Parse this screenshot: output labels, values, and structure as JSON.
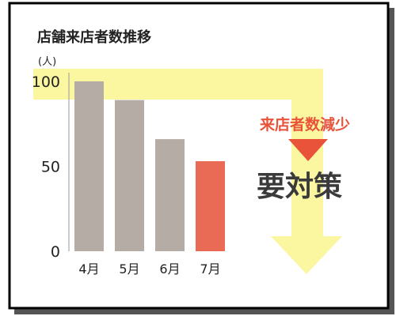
{
  "chart_data": {
    "type": "bar",
    "title": "店舗来店者数推移",
    "ylabel": "(人)",
    "xlabel": "",
    "categories": [
      "4月",
      "5月",
      "6月",
      "7月"
    ],
    "values": [
      100,
      89,
      66,
      53
    ],
    "ylim": [
      0,
      100
    ],
    "yticks": [
      0,
      50,
      100
    ],
    "grid": false,
    "bar_colors": [
      "#b5aca6",
      "#b5aca6",
      "#b5aca6",
      "#e96b55"
    ]
  },
  "annotation": {
    "decline_label": "来店者数減少",
    "decline_color": "#e8533a",
    "action_label": "要対策",
    "action_color": "#3a3a3a",
    "arrow_color": "#fbf6a0",
    "arrowhead_color": "#e8533a"
  }
}
